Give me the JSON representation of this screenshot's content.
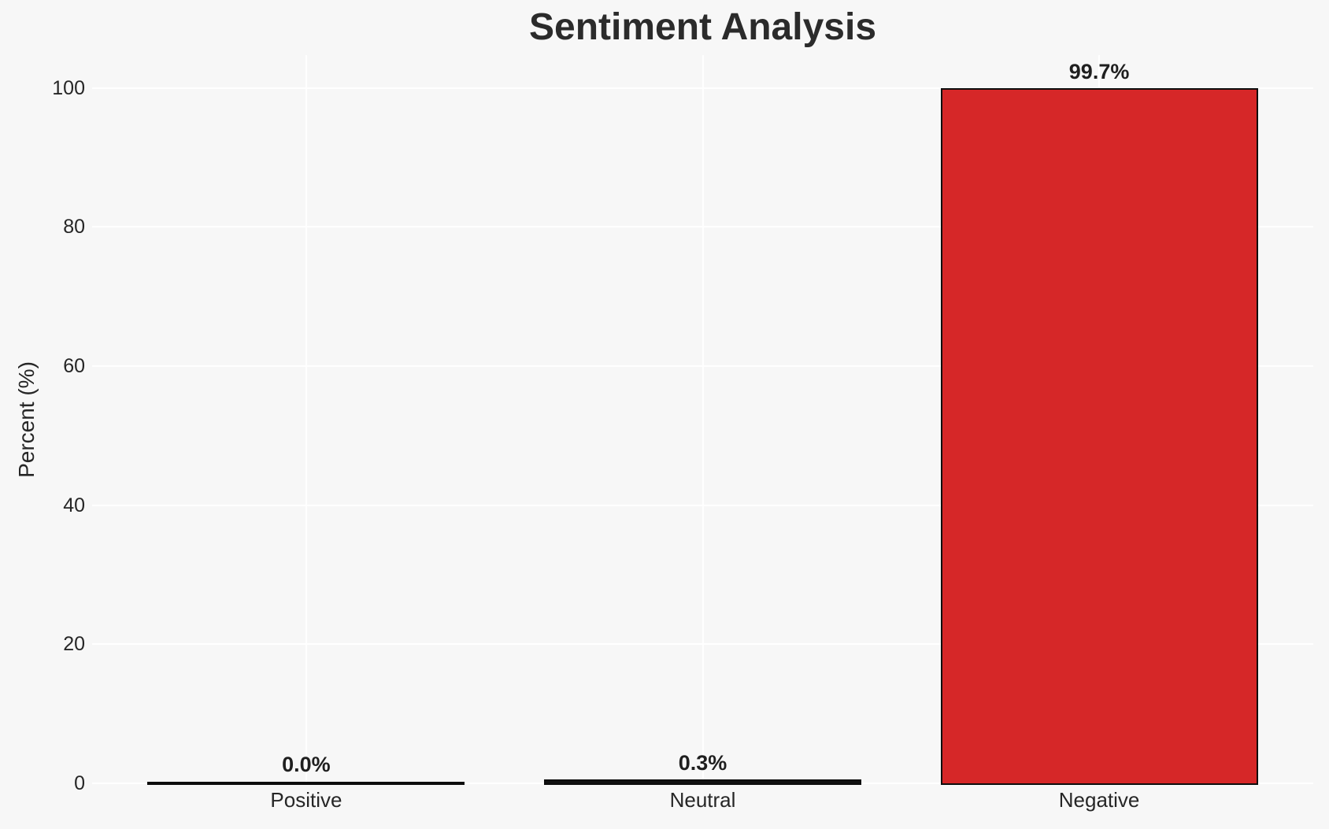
{
  "chart_data": {
    "type": "bar",
    "title": "Sentiment Analysis",
    "ylabel": "Percent (%)",
    "xlabel": "",
    "categories": [
      "Positive",
      "Neutral",
      "Negative"
    ],
    "values": [
      0.0,
      0.3,
      99.7
    ],
    "value_labels": [
      "0.0%",
      "0.3%",
      "99.7%"
    ],
    "yticks": [
      0,
      20,
      40,
      60,
      80,
      100
    ],
    "ytick_labels": [
      "0",
      "20",
      "40",
      "60",
      "80",
      "100"
    ],
    "ylim": [
      0,
      104.7
    ],
    "grid": "on",
    "legend_position": "none",
    "bar_colors": [
      "#111111",
      "#111111",
      "#d62728"
    ],
    "bar_edge_color": "#0d0d0d",
    "background_color": "#f7f7f7",
    "gridline_color": "#ffffff",
    "text_color": "#262626"
  }
}
